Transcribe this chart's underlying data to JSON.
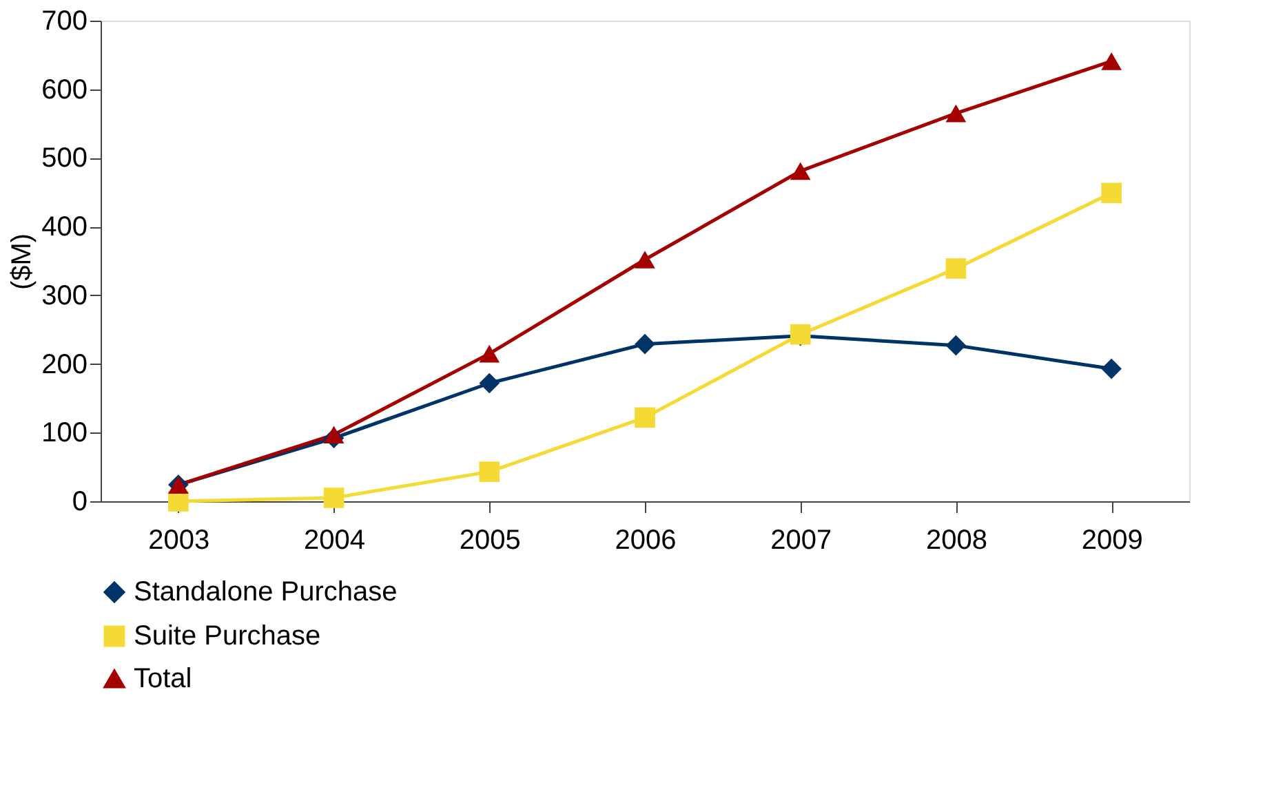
{
  "chart_data": {
    "type": "line",
    "ylabel": "($M)",
    "categories": [
      "2003",
      "2004",
      "2005",
      "2006",
      "2007",
      "2008",
      "2009"
    ],
    "series": [
      {
        "name": "Standalone Purchase",
        "color": "#003366",
        "marker": "diamond",
        "values": [
          24,
          92,
          172,
          229,
          241,
          227,
          193
        ]
      },
      {
        "name": "Suite Purchase",
        "color": "#f5d935",
        "marker": "square",
        "values": [
          0,
          5,
          43,
          122,
          243,
          339,
          449
        ]
      },
      {
        "name": "Total",
        "color": "#a50000",
        "marker": "triangle",
        "values": [
          24,
          97,
          215,
          352,
          481,
          565,
          641
        ]
      }
    ],
    "ylim": [
      0,
      700
    ],
    "yticks": [
      0,
      100,
      200,
      300,
      400,
      500,
      600,
      700
    ],
    "grid": false,
    "legend": "bottom",
    "line_style": "solid"
  }
}
